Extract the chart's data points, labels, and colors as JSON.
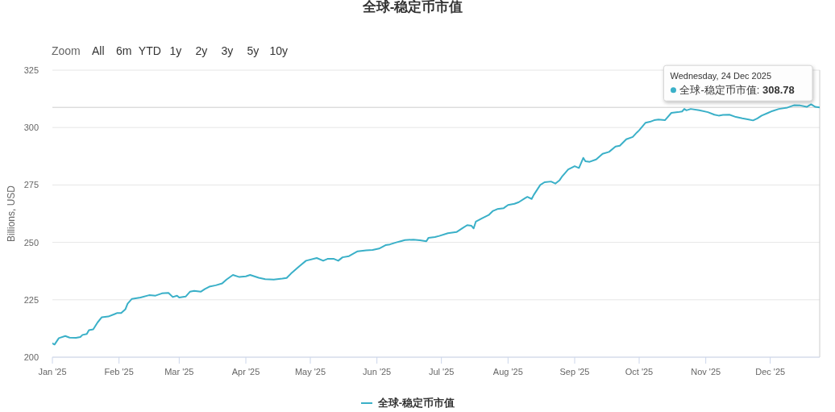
{
  "chart_data": {
    "type": "line",
    "title": "全球-稳定币市值",
    "ylabel": "Billions, USD",
    "annotations": [
      "Zoom",
      "All",
      "6m",
      "YTD",
      "1y",
      "2y",
      "3y",
      "5y",
      "10y",
      {
        "text": "Wednesday, 24 Dec 2025\n全球-稳定币市值: 308.78",
        "x": "2025-12-24",
        "y": 308.78
      }
    ],
    "x": [
      "2025-01-01",
      "2025-01-02",
      "2025-01-04",
      "2025-01-07",
      "2025-01-09",
      "2025-01-12",
      "2025-01-14",
      "2025-01-15",
      "2025-01-17",
      "2025-01-18",
      "2025-01-20",
      "2025-01-22",
      "2025-01-24",
      "2025-01-27",
      "2025-01-30",
      "2025-01-31",
      "2025-02-02",
      "2025-02-04",
      "2025-02-05",
      "2025-02-07",
      "2025-02-11",
      "2025-02-15",
      "2025-02-18",
      "2025-02-21",
      "2025-02-24",
      "2025-02-26",
      "2025-02-28",
      "2025-03-01",
      "2025-03-04",
      "2025-03-06",
      "2025-03-08",
      "2025-03-11",
      "2025-03-13",
      "2025-03-15",
      "2025-03-18",
      "2025-03-21",
      "2025-03-23",
      "2025-03-26",
      "2025-03-29",
      "2025-04-01",
      "2025-04-03",
      "2025-04-05",
      "2025-04-07",
      "2025-04-10",
      "2025-04-14",
      "2025-04-18",
      "2025-04-20",
      "2025-04-22",
      "2025-04-26",
      "2025-04-29",
      "2025-05-04",
      "2025-05-07",
      "2025-05-09",
      "2025-05-12",
      "2025-05-14",
      "2025-05-16",
      "2025-05-19",
      "2025-05-23",
      "2025-05-27",
      "2025-05-30",
      "2025-06-02",
      "2025-06-05",
      "2025-06-07",
      "2025-06-10",
      "2025-06-12",
      "2025-06-14",
      "2025-06-18",
      "2025-06-21",
      "2025-06-24",
      "2025-06-25",
      "2025-06-28",
      "2025-06-30",
      "2025-07-04",
      "2025-07-08",
      "2025-07-11",
      "2025-07-13",
      "2025-07-15",
      "2025-07-16",
      "2025-07-17",
      "2025-07-20",
      "2025-07-23",
      "2025-07-25",
      "2025-07-27",
      "2025-07-30",
      "2025-08-01",
      "2025-08-04",
      "2025-08-06",
      "2025-08-09",
      "2025-08-10",
      "2025-08-12",
      "2025-08-13",
      "2025-08-16",
      "2025-08-18",
      "2025-08-21",
      "2025-08-23",
      "2025-08-25",
      "2025-08-26",
      "2025-08-29",
      "2025-09-01",
      "2025-09-03",
      "2025-09-05",
      "2025-09-06",
      "2025-09-08",
      "2025-09-11",
      "2025-09-14",
      "2025-09-17",
      "2025-09-20",
      "2025-09-22",
      "2025-09-25",
      "2025-09-28",
      "2025-09-30",
      "2025-10-01",
      "2025-10-04",
      "2025-10-06",
      "2025-10-08",
      "2025-10-10",
      "2025-10-13",
      "2025-10-16",
      "2025-10-19",
      "2025-10-21",
      "2025-10-22",
      "2025-10-23",
      "2025-10-25",
      "2025-10-29",
      "2025-11-02",
      "2025-11-05",
      "2025-11-07",
      "2025-11-09",
      "2025-11-12",
      "2025-11-15",
      "2025-11-18",
      "2025-11-21",
      "2025-11-23",
      "2025-11-25",
      "2025-11-27",
      "2025-11-30",
      "2025-12-02",
      "2025-12-05",
      "2025-12-09",
      "2025-12-12",
      "2025-12-15",
      "2025-12-18",
      "2025-12-20",
      "2025-12-22",
      "2025-12-24"
    ],
    "series": [
      {
        "name": "全球-稳定币市值",
        "color": "#3ab0c8",
        "values": [
          206.0,
          205.5,
          208.3,
          209.2,
          208.5,
          208.4,
          208.8,
          209.7,
          210.1,
          211.8,
          212.1,
          215.1,
          217.4,
          217.7,
          218.8,
          219.2,
          219.2,
          220.9,
          223.3,
          225.4,
          226.0,
          227.0,
          226.8,
          227.8,
          228.0,
          226.2,
          226.8,
          226.0,
          226.4,
          228.5,
          228.9,
          228.5,
          229.7,
          230.7,
          231.3,
          232.1,
          233.8,
          235.8,
          234.9,
          235.2,
          235.8,
          235.2,
          234.6,
          234.0,
          233.8,
          234.2,
          234.5,
          236.4,
          239.7,
          242.0,
          243.2,
          242.0,
          242.8,
          242.8,
          242.0,
          243.5,
          244.0,
          246.1,
          246.5,
          246.7,
          247.3,
          248.8,
          249.1,
          250.0,
          250.5,
          251.0,
          251.2,
          250.9,
          250.5,
          252.0,
          252.3,
          252.8,
          254.0,
          254.5,
          256.3,
          257.5,
          257.2,
          256.1,
          259.0,
          260.5,
          261.9,
          263.7,
          264.5,
          264.9,
          266.3,
          266.8,
          267.5,
          269.3,
          269.8,
          268.9,
          270.7,
          275.0,
          276.2,
          276.5,
          275.6,
          277.1,
          278.5,
          281.8,
          283.2,
          282.4,
          286.8,
          285.3,
          285.1,
          286.1,
          288.6,
          289.4,
          291.7,
          292.1,
          294.9,
          295.9,
          297.9,
          298.8,
          302.1,
          302.5,
          303.2,
          303.5,
          303.2,
          306.4,
          306.7,
          307.0,
          308.1,
          307.5,
          308.1,
          307.5,
          306.7,
          305.6,
          305.2,
          305.5,
          305.6,
          304.6,
          304.0,
          303.5,
          303.1,
          304.0,
          305.2,
          306.4,
          307.2,
          308.1,
          308.7,
          309.7,
          309.6,
          309.0,
          310.1,
          309.0,
          308.78
        ]
      }
    ],
    "xlim": [
      "2025-01-01",
      "2025-12-24"
    ],
    "xticks": [
      {
        "value": "2025-01-01",
        "label": "Jan '25"
      },
      {
        "value": "2025-02-01",
        "label": "Feb '25"
      },
      {
        "value": "2025-03-01",
        "label": "Mar '25"
      },
      {
        "value": "2025-04-01",
        "label": "Apr '25"
      },
      {
        "value": "2025-05-01",
        "label": "May '25"
      },
      {
        "value": "2025-06-01",
        "label": "Jun '25"
      },
      {
        "value": "2025-07-01",
        "label": "Jul '25"
      },
      {
        "value": "2025-08-01",
        "label": "Aug '25"
      },
      {
        "value": "2025-09-01",
        "label": "Sep '25"
      },
      {
        "value": "2025-10-01",
        "label": "Oct '25"
      },
      {
        "value": "2025-11-01",
        "label": "Nov '25"
      },
      {
        "value": "2025-12-01",
        "label": "Dec '25"
      }
    ],
    "ylim": [
      200,
      325
    ],
    "yticks": [
      200,
      225,
      250,
      275,
      300,
      325
    ],
    "ref_lines": [
      {
        "axis": "y",
        "value": 308.78,
        "color": "#cccccc"
      },
      {
        "axis": "x",
        "value": "2025-12-24",
        "color": "#cccccc"
      }
    ],
    "grid": "y",
    "legend": "bottom"
  }
}
